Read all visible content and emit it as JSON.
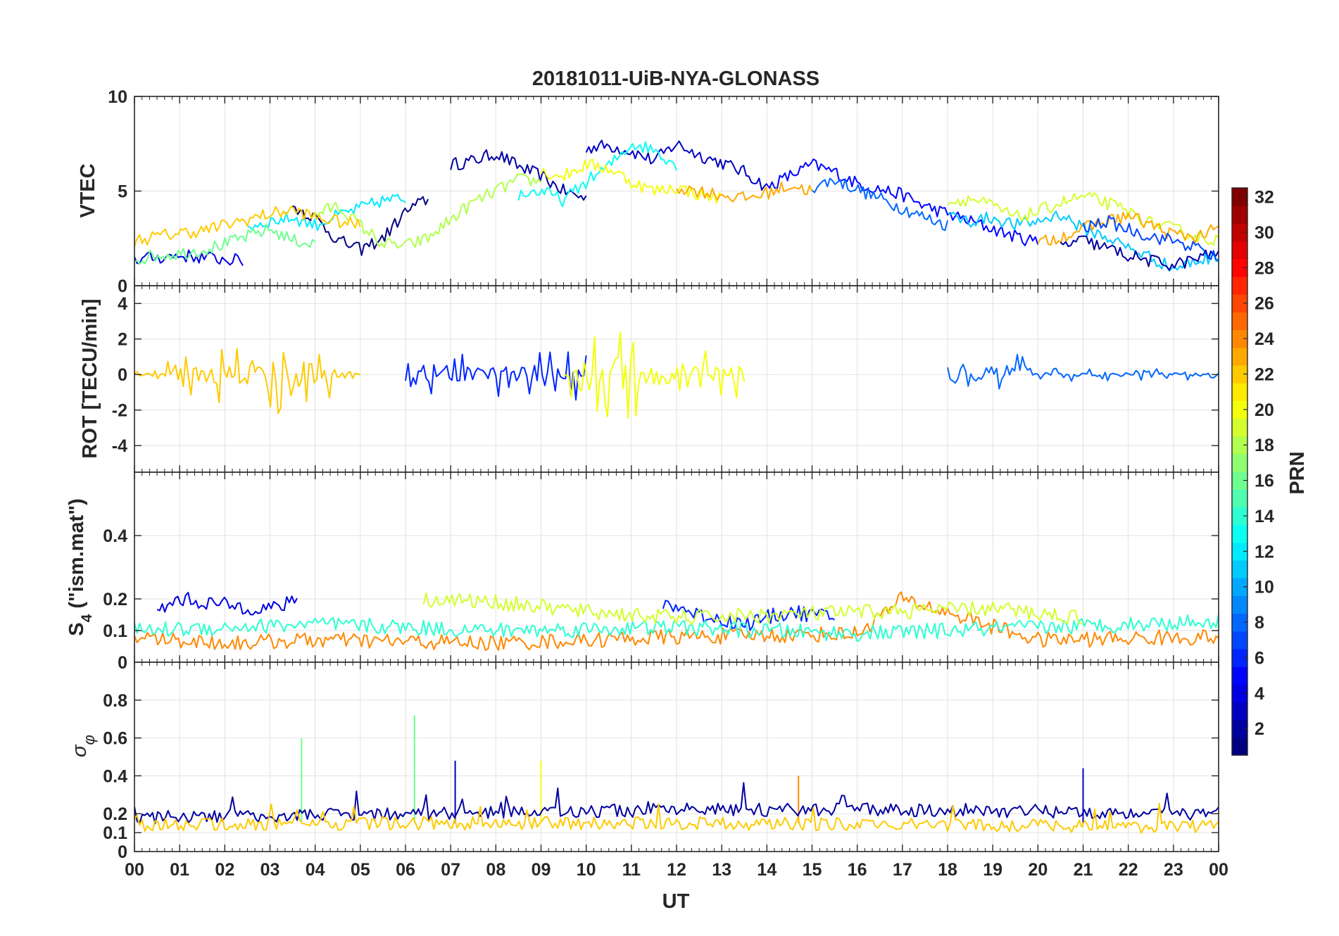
{
  "chart_data": {
    "type": "line",
    "title": "20181011-UiB-NYA-GLONASS",
    "xlabel": "UT",
    "x_ticks": [
      "00",
      "01",
      "02",
      "03",
      "04",
      "05",
      "06",
      "07",
      "08",
      "09",
      "10",
      "11",
      "12",
      "13",
      "14",
      "15",
      "16",
      "17",
      "18",
      "19",
      "20",
      "21",
      "22",
      "23",
      "00"
    ],
    "xlim": [
      0,
      24
    ],
    "colorbar": {
      "label": "PRN",
      "range": [
        1,
        32
      ],
      "ticks": [
        "2",
        "4",
        "6",
        "8",
        "10",
        "12",
        "14",
        "16",
        "18",
        "20",
        "22",
        "24",
        "26",
        "28",
        "30",
        "32"
      ]
    },
    "panels": [
      {
        "key": "vtec",
        "ylabel": "VTEC",
        "ylim": [
          0,
          10
        ],
        "yticks": [
          "0",
          "5",
          "10"
        ],
        "series": [
          {
            "prn": 2,
            "x": [
              7.0,
              7.5,
              8.0,
              8.5,
              9.0,
              9.5,
              10.0
            ],
            "y": [
              6.4,
              6.6,
              7.0,
              6.3,
              5.8,
              5.0,
              4.6
            ]
          },
          {
            "prn": 3,
            "x": [
              10.0,
              10.5,
              11.0,
              11.5,
              12.0,
              12.5,
              13.0,
              13.5,
              14.0
            ],
            "y": [
              7.3,
              7.4,
              7.1,
              6.6,
              7.5,
              6.9,
              6.5,
              6.0,
              5.2
            ]
          },
          {
            "prn": 5,
            "x": [
              14.0,
              14.5,
              15.0,
              15.5,
              16.0,
              16.5,
              17.0,
              17.5,
              18.0,
              18.5,
              19.0,
              19.5,
              20.0
            ],
            "y": [
              5.2,
              5.8,
              6.4,
              6.0,
              5.4,
              5.1,
              4.8,
              4.2,
              3.8,
              3.4,
              3.0,
              2.6,
              2.3
            ]
          },
          {
            "prn": 8,
            "x": [
              15.0,
              15.5,
              16.0,
              16.5,
              17.0,
              17.5,
              18.0
            ],
            "y": [
              5.2,
              5.6,
              5.1,
              4.6,
              4.1,
              3.6,
              3.2
            ]
          },
          {
            "prn": 1,
            "x": [
              3.5,
              4.0,
              4.5,
              5.0,
              5.5,
              6.0,
              6.5
            ],
            "y": [
              4.2,
              3.6,
              2.4,
              1.9,
              2.5,
              3.9,
              4.6
            ]
          },
          {
            "prn": 4,
            "x": [
              0.0,
              0.5,
              1.0,
              1.5,
              2.0,
              2.4
            ],
            "y": [
              1.4,
              1.5,
              1.6,
              1.5,
              1.4,
              1.3
            ]
          },
          {
            "prn": 12,
            "x": [
              2.5,
              3.0,
              3.5,
              4.0,
              4.5,
              5.0,
              5.5,
              6.0
            ],
            "y": [
              3.1,
              3.4,
              3.6,
              3.2,
              3.7,
              4.1,
              4.5,
              4.6
            ]
          },
          {
            "prn": 16,
            "x": [
              0.0,
              0.5,
              1.0,
              1.5,
              2.0,
              2.5,
              3.0,
              3.5,
              4.0
            ],
            "y": [
              1.4,
              1.6,
              1.7,
              1.9,
              2.2,
              2.6,
              3.0,
              2.4,
              2.2
            ]
          },
          {
            "prn": 18,
            "x": [
              4.0,
              4.5,
              5.0,
              5.5,
              6.0,
              6.5,
              7.0,
              7.5,
              8.0,
              8.5,
              9.0
            ],
            "y": [
              3.8,
              4.2,
              3.2,
              2.2,
              2.1,
              2.5,
              3.5,
              4.4,
              5.0,
              5.6,
              5.5
            ]
          },
          {
            "prn": 13,
            "x": [
              8.5,
              9.0,
              9.5,
              10.0,
              10.5,
              11.0,
              11.5,
              12.0
            ],
            "y": [
              4.8,
              5.0,
              4.5,
              5.5,
              6.3,
              7.5,
              7.2,
              6.4
            ]
          },
          {
            "prn": 20,
            "x": [
              9.0,
              9.5,
              10.0,
              10.5,
              11.0,
              11.5,
              12.0,
              12.5,
              13.0
            ],
            "y": [
              6.0,
              5.8,
              6.4,
              6.2,
              5.5,
              5.0,
              5.2,
              4.8,
              4.6
            ]
          },
          {
            "prn": 22,
            "x": [
              0.0,
              0.5,
              1.0,
              1.5,
              2.0,
              2.5,
              3.0,
              3.5,
              4.0,
              4.5,
              5.0
            ],
            "y": [
              2.4,
              2.6,
              2.8,
              2.9,
              3.2,
              3.5,
              3.8,
              4.0,
              3.6,
              3.4,
              3.2
            ]
          },
          {
            "prn": 23,
            "x": [
              12.0,
              12.5,
              13.0,
              13.5,
              14.0,
              14.5,
              15.0
            ],
            "y": [
              5.2,
              5.0,
              4.8,
              4.6,
              4.9,
              5.3,
              5.0
            ]
          },
          {
            "prn": 11,
            "x": [
              18.0,
              18.5,
              19.0,
              19.5,
              20.0,
              20.5,
              21.0,
              21.5,
              22.0,
              22.5,
              23.0,
              23.5,
              24.0
            ],
            "y": [
              3.7,
              3.4,
              3.6,
              3.2,
              3.4,
              3.8,
              3.0,
              2.6,
              2.0,
              1.5,
              0.9,
              1.3,
              1.6
            ]
          },
          {
            "prn": 19,
            "x": [
              18.0,
              18.5,
              19.0,
              19.5,
              20.0,
              20.5,
              21.0,
              21.5,
              22.0,
              22.5,
              23.0,
              23.5,
              24.0
            ],
            "y": [
              4.4,
              4.6,
              4.2,
              3.6,
              3.9,
              4.4,
              4.7,
              4.4,
              3.9,
              3.3,
              3.0,
              2.6,
              2.4
            ]
          },
          {
            "prn": 23,
            "x": [
              20.0,
              20.5,
              21.0,
              21.5,
              22.0,
              22.5,
              23.0,
              23.5,
              24.0
            ],
            "y": [
              2.2,
              2.6,
              3.0,
              3.4,
              3.7,
              3.2,
              2.7,
              2.6,
              3.0
            ]
          },
          {
            "prn": 2,
            "x": [
              20.5,
              21.0,
              21.5,
              22.0,
              22.5,
              23.0,
              23.5,
              24.0
            ],
            "y": [
              2.1,
              2.4,
              2.0,
              1.6,
              1.3,
              1.1,
              1.4,
              1.8
            ]
          },
          {
            "prn": 7,
            "x": [
              21.0,
              21.5,
              22.0,
              22.5,
              23.0,
              23.5,
              24.0
            ],
            "y": [
              3.0,
              3.4,
              3.0,
              2.6,
              2.4,
              2.0,
              1.4
            ]
          }
        ]
      },
      {
        "key": "rot",
        "ylabel": "ROT [TECU/min]",
        "ylim": [
          -5.5,
          5.0
        ],
        "yticks": [
          "-4",
          "-2",
          "0",
          "2",
          "4"
        ],
        "series": [
          {
            "prn": 22,
            "x": [
              0.0,
              3.0,
              3.5,
              4.0,
              5.0
            ],
            "y_envelope": [
              0.2,
              2.5,
              2.6,
              1.8,
              0.4
            ]
          },
          {
            "prn": 6,
            "x": [
              6.0,
              7.0,
              8.0,
              9.0,
              10.0
            ],
            "y_envelope": [
              2.0,
              1.4,
              1.2,
              1.6,
              1.8
            ]
          },
          {
            "prn": 20,
            "x": [
              9.5,
              10.5,
              11.5,
              12.5,
              13.5
            ],
            "y_envelope": [
              3.0,
              2.8,
              2.6,
              2.2,
              1.2
            ]
          },
          {
            "prn": 8,
            "x": [
              18.0,
              19.0,
              19.6,
              20.0,
              24.0
            ],
            "y_envelope": [
              1.6,
              1.0,
              1.9,
              0.4,
              0.3
            ]
          }
        ]
      },
      {
        "key": "s4",
        "ylabel": "S4 (\"ism.mat\")",
        "ylim": [
          0,
          0.6
        ],
        "yticks": [
          "0",
          "0.1",
          "0.2",
          "0.4"
        ],
        "series": [
          {
            "prn": 4,
            "x": [
              0.5,
              1.0,
              2.0,
              3.0,
              3.6
            ],
            "y": [
              0.16,
              0.2,
              0.18,
              0.17,
              0.19
            ]
          },
          {
            "prn": 6,
            "x": [
              11.7,
              12.5,
              13.5,
              14.5,
              15.5
            ],
            "y": [
              0.19,
              0.15,
              0.12,
              0.16,
              0.14
            ]
          },
          {
            "prn": 24,
            "x": [
              0.0,
              2.0,
              4.0,
              8.0,
              12.0,
              16.0,
              17.0,
              20.0,
              24.0
            ],
            "y": [
              0.08,
              0.06,
              0.07,
              0.06,
              0.08,
              0.09,
              0.2,
              0.07,
              0.08
            ]
          },
          {
            "prn": 14,
            "x": [
              0.0,
              4.0,
              8.0,
              12.0,
              16.0,
              20.0,
              24.0
            ],
            "y": [
              0.1,
              0.12,
              0.1,
              0.11,
              0.09,
              0.11,
              0.13
            ]
          },
          {
            "prn": 19,
            "x": [
              6.4,
              8.0,
              10.0,
              12.0,
              19.0,
              21.0
            ],
            "y": [
              0.2,
              0.19,
              0.16,
              0.14,
              0.17,
              0.14
            ]
          }
        ]
      },
      {
        "key": "sigma_phi",
        "ylabel": "σφ",
        "ylim": [
          0,
          1.0
        ],
        "yticks": [
          "0",
          "0.1",
          "0.2",
          "0.4",
          "0.6",
          "0.8"
        ],
        "series": [
          {
            "prn": 16,
            "x": [
              3.7
            ],
            "y": [
              0.6
            ]
          },
          {
            "prn": 16,
            "x": [
              6.2
            ],
            "y": [
              0.72
            ]
          },
          {
            "prn": 3,
            "x": [
              7.1
            ],
            "y": [
              0.48
            ]
          },
          {
            "prn": 20,
            "x": [
              9.0
            ],
            "y": [
              0.48
            ]
          },
          {
            "prn": 24,
            "x": [
              14.7
            ],
            "y": [
              0.4
            ]
          },
          {
            "prn": 3,
            "x": [
              21.0
            ],
            "y": [
              0.44
            ]
          },
          {
            "prn": 2,
            "x": [
              0.0,
              6.0,
              12.0,
              18.0,
              24.0
            ],
            "y_baseline": [
              0.18,
              0.2,
              0.22,
              0.22,
              0.2
            ]
          },
          {
            "prn": 22,
            "x": [
              0.0,
              6.0,
              12.0,
              18.0,
              24.0
            ],
            "y_baseline": [
              0.14,
              0.15,
              0.15,
              0.14,
              0.13
            ]
          }
        ]
      }
    ]
  }
}
